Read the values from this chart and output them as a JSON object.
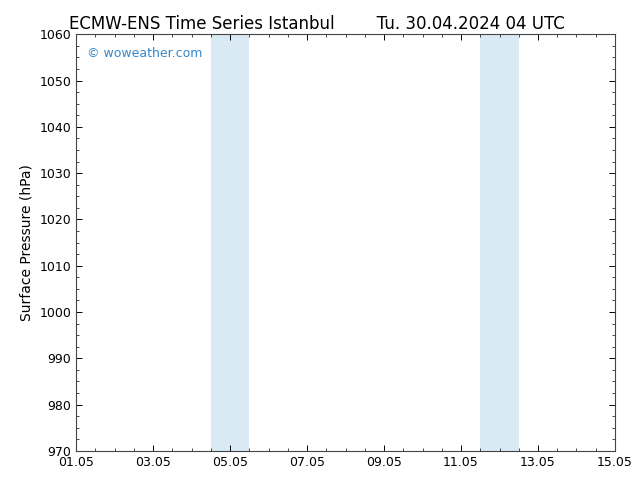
{
  "title_left": "ECMW-ENS Time Series Istanbul",
  "title_right": "Tu. 30.04.2024 04 UTC",
  "ylabel": "Surface Pressure (hPa)",
  "ylim": [
    970,
    1060
  ],
  "yticks": [
    970,
    980,
    990,
    1000,
    1010,
    1020,
    1030,
    1040,
    1050,
    1060
  ],
  "xtick_labels": [
    "01.05",
    "03.05",
    "05.05",
    "07.05",
    "09.05",
    "11.05",
    "13.05",
    "15.05"
  ],
  "xtick_days": [
    1,
    3,
    5,
    7,
    9,
    11,
    13,
    15
  ],
  "shaded_regions": [
    {
      "day_start": 4.5,
      "day_end": 5.5
    },
    {
      "day_start": 11.5,
      "day_end": 12.5
    }
  ],
  "shade_color": "#daeaf5",
  "bg_color": "#ffffff",
  "watermark_text": "© woweather.com",
  "watermark_color": "#3388cc",
  "title_fontsize": 12,
  "axis_fontsize": 10,
  "tick_fontsize": 9,
  "spine_color": "#444444"
}
